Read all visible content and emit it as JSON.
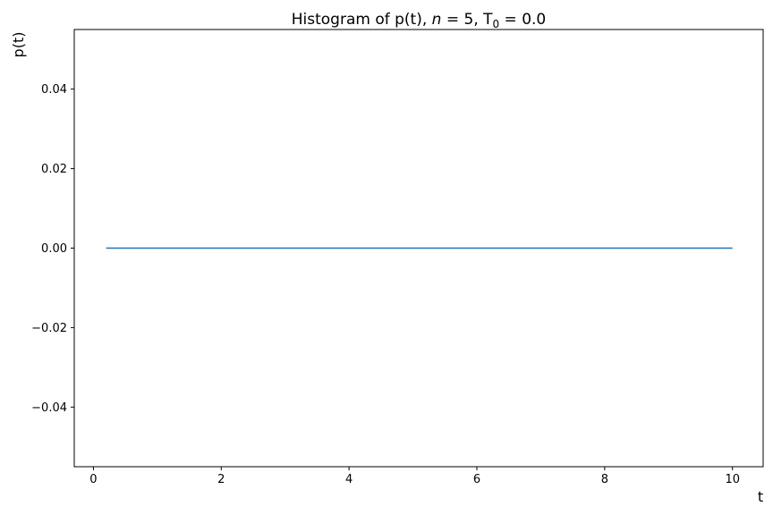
{
  "chart_data": {
    "type": "line",
    "title_parts": {
      "prefix": "Histogram of p(t), ",
      "n_symbol": "n",
      "n_text": " = 5, T",
      "t_sub": "0",
      "t_text": " = 0.0"
    },
    "xlabel": "t",
    "ylabel": "p(t)",
    "xlim": [
      -0.3,
      10.48
    ],
    "ylim": [
      -0.055,
      0.055
    ],
    "xticks": [
      0,
      2,
      4,
      6,
      8,
      10
    ],
    "xtick_labels": [
      "0",
      "2",
      "4",
      "6",
      "8",
      "10"
    ],
    "yticks": [
      0.04,
      0.02,
      0.0,
      -0.02,
      -0.04
    ],
    "ytick_labels": [
      "0.04",
      "0.02",
      "0.00",
      "−0.02",
      "−0.04"
    ],
    "grid": false,
    "series": [
      {
        "color": "#1f77b4",
        "x": [
          0.2,
          10.0
        ],
        "y": [
          0.0,
          0.0
        ]
      }
    ]
  }
}
